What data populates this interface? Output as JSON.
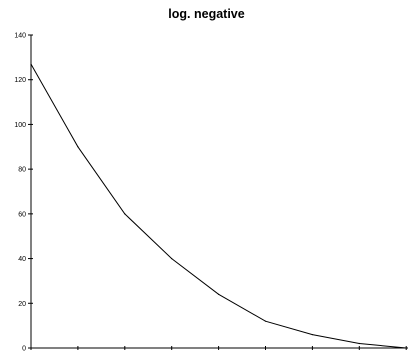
{
  "chart_data": {
    "type": "line",
    "title": "log. negative",
    "xlabel": "",
    "ylabel": "",
    "ylim": [
      0,
      140
    ],
    "y_ticks": [
      "0",
      "20",
      "40",
      "60",
      "80",
      "100",
      "120",
      "140"
    ],
    "grid": false,
    "legend": "none",
    "x": [
      1,
      2,
      3,
      4,
      5,
      6,
      7,
      8,
      9
    ],
    "series": [
      {
        "values": [
          127,
          90,
          60,
          40,
          24,
          12,
          6,
          2,
          0
        ],
        "color": "#000000"
      }
    ]
  }
}
